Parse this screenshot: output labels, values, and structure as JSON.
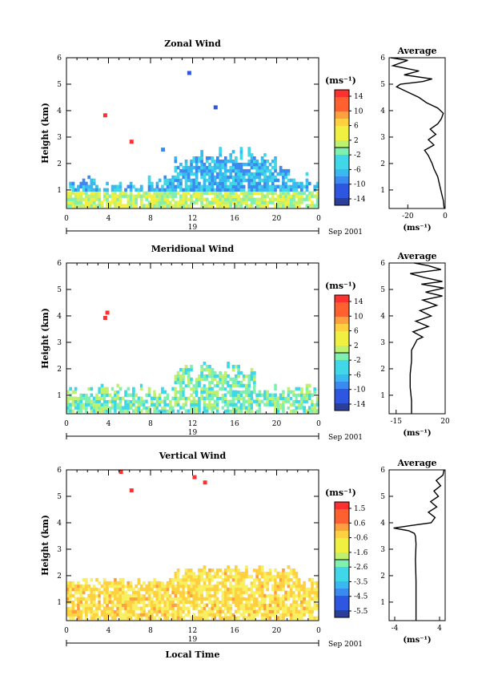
{
  "figure": {
    "time_axis_label": "Local Time",
    "date_label": "Sep 2001",
    "day_label": "19",
    "height_axis_label": "Height (km)",
    "unit_label": "(ms⁻¹)",
    "average_title": "Average"
  },
  "chart_data": [
    {
      "type": "heatmap",
      "title": "Zonal Wind",
      "xlabel": "",
      "ylabel": "Height (km)",
      "xlim": [
        0,
        24
      ],
      "ylim": [
        0.3,
        6
      ],
      "x_ticks": [
        "0",
        "4",
        "8",
        "12",
        "16",
        "20",
        "0"
      ],
      "y_ticks": [
        "1",
        "2",
        "3",
        "4",
        "5",
        "6"
      ],
      "colorbar": {
        "label": "(ms⁻¹)",
        "range": [
          -16,
          16
        ],
        "ticks": [
          "14",
          "10",
          "6",
          "2",
          "-2",
          "-6",
          "-10",
          "-14"
        ]
      },
      "average_profile": {
        "title": "Average",
        "xlabel": "(ms⁻¹)",
        "xlim": [
          -30,
          0
        ],
        "x_ticks": [
          "-20",
          "0"
        ],
        "values": [
          [
            -0.5,
            0.3
          ],
          [
            -1,
            0.6
          ],
          [
            -2,
            0.9
          ],
          [
            -3,
            1.2
          ],
          [
            -4,
            1.5
          ],
          [
            -6,
            1.8
          ],
          [
            -7,
            2.0
          ],
          [
            -9,
            2.3
          ],
          [
            -11,
            2.5
          ],
          [
            -6,
            2.7
          ],
          [
            -9,
            2.9
          ],
          [
            -5,
            3.1
          ],
          [
            -8,
            3.3
          ],
          [
            -4,
            3.5
          ],
          [
            -2,
            3.7
          ],
          [
            -1,
            3.9
          ],
          [
            -4,
            4.1
          ],
          [
            -10,
            4.3
          ],
          [
            -14,
            4.5
          ],
          [
            -20,
            4.7
          ],
          [
            -26,
            4.9
          ],
          [
            -24,
            5.0
          ],
          [
            -12,
            5.1
          ],
          [
            -7,
            5.2
          ],
          [
            -22,
            5.35
          ],
          [
            -14,
            5.5
          ],
          [
            -28,
            5.7
          ],
          [
            -20,
            5.9
          ],
          [
            -29,
            6.0
          ]
        ]
      }
    },
    {
      "type": "heatmap",
      "title": "Meridional Wind",
      "xlabel": "",
      "ylabel": "Height (km)",
      "xlim": [
        0,
        24
      ],
      "ylim": [
        0.3,
        6
      ],
      "x_ticks": [
        "0",
        "4",
        "8",
        "12",
        "16",
        "20",
        "0"
      ],
      "y_ticks": [
        "1",
        "2",
        "3",
        "4",
        "5",
        "6"
      ],
      "colorbar": {
        "label": "(ms⁻¹)",
        "range": [
          -16,
          16
        ],
        "ticks": [
          "14",
          "10",
          "6",
          "2",
          "-2",
          "-6",
          "-10",
          "-14"
        ]
      },
      "average_profile": {
        "title": "Average",
        "xlabel": "(ms⁻¹)",
        "xlim": [
          -20,
          20
        ],
        "x_ticks": [
          "-15",
          "20"
        ],
        "values": [
          [
            -4,
            0.3
          ],
          [
            -4,
            0.8
          ],
          [
            -5,
            1.3
          ],
          [
            -5,
            1.8
          ],
          [
            -4,
            2.3
          ],
          [
            -4,
            2.7
          ],
          [
            -2,
            2.9
          ],
          [
            0,
            3.1
          ],
          [
            4,
            3.2
          ],
          [
            -3,
            3.4
          ],
          [
            8,
            3.6
          ],
          [
            -1,
            3.8
          ],
          [
            10,
            4.0
          ],
          [
            2,
            4.2
          ],
          [
            14,
            4.4
          ],
          [
            4,
            4.6
          ],
          [
            18,
            4.75
          ],
          [
            6,
            4.9
          ],
          [
            19,
            5.05
          ],
          [
            3,
            5.2
          ],
          [
            18,
            5.3
          ],
          [
            5,
            5.45
          ],
          [
            -5,
            5.6
          ],
          [
            17,
            5.75
          ],
          [
            8,
            5.9
          ],
          [
            -2,
            6.0
          ]
        ]
      }
    },
    {
      "type": "heatmap",
      "title": "Vertical Wind",
      "xlabel": "Local Time",
      "ylabel": "Height (km)",
      "xlim": [
        0,
        24
      ],
      "ylim": [
        0.3,
        6
      ],
      "x_ticks": [
        "0",
        "4",
        "8",
        "12",
        "16",
        "20",
        "0"
      ],
      "y_ticks": [
        "1",
        "2",
        "3",
        "4",
        "5",
        "6"
      ],
      "colorbar": {
        "label": "(ms⁻¹)",
        "range": [
          -6,
          2
        ],
        "ticks": [
          "1.5",
          "0.6",
          "-0.6",
          "-1.6",
          "-2.6",
          "-3.5",
          "-4.5",
          "-5.5"
        ]
      },
      "average_profile": {
        "title": "Average",
        "xlabel": "(ms⁻¹)",
        "xlim": [
          -5,
          5
        ],
        "x_ticks": [
          "-4",
          "4"
        ],
        "values": [
          [
            -0.2,
            0.3
          ],
          [
            -0.2,
            1.0
          ],
          [
            -0.2,
            1.8
          ],
          [
            -0.3,
            2.6
          ],
          [
            -0.2,
            3.2
          ],
          [
            -0.3,
            3.5
          ],
          [
            -0.5,
            3.6
          ],
          [
            -1.5,
            3.7
          ],
          [
            -4.2,
            3.8
          ],
          [
            -1.0,
            3.9
          ],
          [
            2.5,
            4.0
          ],
          [
            3.2,
            4.2
          ],
          [
            2.0,
            4.4
          ],
          [
            3.5,
            4.6
          ],
          [
            2.4,
            4.8
          ],
          [
            3.8,
            5.0
          ],
          [
            3.0,
            5.2
          ],
          [
            4.2,
            5.4
          ],
          [
            3.4,
            5.6
          ],
          [
            4.6,
            5.8
          ],
          [
            4.8,
            6.0
          ]
        ]
      }
    }
  ]
}
